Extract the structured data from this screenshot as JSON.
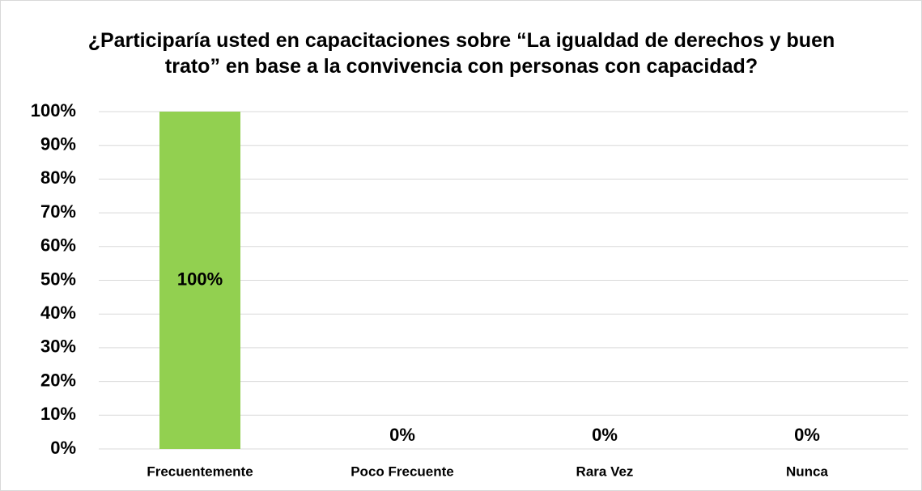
{
  "chart_data": {
    "type": "bar",
    "title": "¿Participaría usted en capacitaciones sobre “La igualdad de derechos y buen trato” en base a la convivencia con personas con capacidad?",
    "categories": [
      "Frecuentemente",
      "Poco Frecuente",
      "Rara Vez",
      "Nunca"
    ],
    "values": [
      100,
      0,
      0,
      0
    ],
    "value_labels": [
      "100%",
      "0%",
      "0%",
      "0%"
    ],
    "color": "#92d050",
    "ylim": [
      0,
      100
    ],
    "yticks": [
      {
        "value": 0,
        "label": "0%"
      },
      {
        "value": 10,
        "label": "10%"
      },
      {
        "value": 20,
        "label": "20%"
      },
      {
        "value": 30,
        "label": "30%"
      },
      {
        "value": 40,
        "label": "40%"
      },
      {
        "value": 50,
        "label": "50%"
      },
      {
        "value": 60,
        "label": "60%"
      },
      {
        "value": 70,
        "label": "70%"
      },
      {
        "value": 80,
        "label": "80%"
      },
      {
        "value": 90,
        "label": "90%"
      },
      {
        "value": 100,
        "label": "100%"
      }
    ],
    "grid": true
  }
}
